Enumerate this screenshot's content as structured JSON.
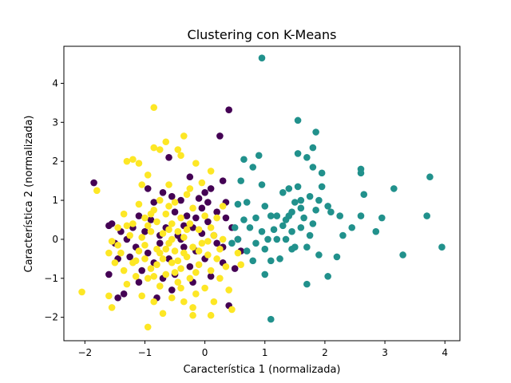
{
  "chart_data": {
    "type": "scatter",
    "title": "Clustering con K-Means",
    "xlabel": "Característica 1 (normalizada)",
    "ylabel": "Característica 2 (normalizada)",
    "xlim": [
      -2.35,
      4.25
    ],
    "ylim": [
      -2.6,
      4.95
    ],
    "xticks": [
      -2,
      -1,
      0,
      1,
      2,
      3,
      4
    ],
    "yticks": [
      -2,
      -1,
      0,
      1,
      2,
      3,
      4
    ],
    "xtick_labels": [
      "−2",
      "−1",
      "0",
      "1",
      "2",
      "3",
      "4"
    ],
    "ytick_labels": [
      "−2",
      "−1",
      "0",
      "1",
      "2",
      "3",
      "4"
    ],
    "grid": false,
    "legend": "none",
    "series": [
      {
        "color": "#440154",
        "points": [
          [
            -1.85,
            1.45
          ],
          [
            -1.6,
            0.35
          ],
          [
            -1.6,
            -0.9
          ],
          [
            -1.55,
            0.4
          ],
          [
            -1.5,
            -0.1
          ],
          [
            -1.45,
            -0.5
          ],
          [
            -1.45,
            -1.5
          ],
          [
            -1.4,
            0.2
          ],
          [
            -1.35,
            -1.4
          ],
          [
            -1.3,
            0.0
          ],
          [
            -1.25,
            -0.45
          ],
          [
            -1.2,
            0.3
          ],
          [
            -1.15,
            -0.2
          ],
          [
            -1.1,
            0.6
          ],
          [
            -1.05,
            -0.8
          ],
          [
            -1.0,
            0.2
          ],
          [
            -0.95,
            -0.35
          ],
          [
            -0.9,
            0.5
          ],
          [
            -0.85,
            -0.6
          ],
          [
            -0.8,
            -1.5
          ],
          [
            -0.75,
            -0.1
          ],
          [
            -0.7,
            1.2
          ],
          [
            -0.65,
            0.3
          ],
          [
            -0.6,
            -0.5
          ],
          [
            -0.55,
            1.1
          ],
          [
            -0.55,
            -1.3
          ],
          [
            -0.5,
            0.7
          ],
          [
            -0.5,
            -0.9
          ],
          [
            -0.45,
            0.1
          ],
          [
            -0.4,
            1.0
          ],
          [
            -0.35,
            -0.2
          ],
          [
            -0.3,
            0.6
          ],
          [
            -0.25,
            -0.7
          ],
          [
            -0.25,
            1.6
          ],
          [
            -0.2,
            0.3
          ],
          [
            -0.15,
            -0.3
          ],
          [
            -0.1,
            1.05
          ],
          [
            -0.05,
            0.8
          ],
          [
            0.0,
            -0.5
          ],
          [
            0.05,
            0.45
          ],
          [
            0.1,
            -0.95
          ],
          [
            0.1,
            1.3
          ],
          [
            0.15,
            0.1
          ],
          [
            0.2,
            0.7
          ],
          [
            0.25,
            2.65
          ],
          [
            0.3,
            -0.2
          ],
          [
            0.35,
            0.95
          ],
          [
            0.4,
            3.32
          ],
          [
            0.4,
            -1.7
          ],
          [
            0.45,
            0.3
          ],
          [
            0.5,
            -0.75
          ],
          [
            0.55,
            0.0
          ],
          [
            0.6,
            -0.3
          ],
          [
            0.3,
            1.5
          ],
          [
            -0.6,
            2.1
          ],
          [
            -0.4,
            0.0
          ],
          [
            -0.95,
            1.3
          ],
          [
            0.0,
            1.2
          ],
          [
            -0.7,
            -1.0
          ],
          [
            -0.2,
            -1.1
          ],
          [
            0.2,
            -0.1
          ],
          [
            -0.15,
            0.55
          ],
          [
            0.05,
            0.95
          ],
          [
            -0.05,
            0.15
          ],
          [
            -0.35,
            0.35
          ],
          [
            -0.85,
            0.95
          ],
          [
            -1.1,
            -1.1
          ],
          [
            -0.75,
            0.1
          ],
          [
            0.35,
            0.55
          ],
          [
            0.3,
            -0.6
          ]
        ]
      },
      {
        "color": "#21918c",
        "points": [
          [
            0.95,
            4.65
          ],
          [
            1.55,
            3.05
          ],
          [
            1.85,
            2.75
          ],
          [
            1.8,
            2.35
          ],
          [
            1.55,
            2.2
          ],
          [
            1.7,
            2.1
          ],
          [
            1.8,
            1.85
          ],
          [
            1.95,
            1.7
          ],
          [
            2.6,
            1.8
          ],
          [
            2.6,
            1.7
          ],
          [
            2.65,
            1.15
          ],
          [
            3.15,
            1.3
          ],
          [
            3.75,
            1.6
          ],
          [
            3.7,
            0.6
          ],
          [
            3.95,
            -0.2
          ],
          [
            2.95,
            0.55
          ],
          [
            2.85,
            0.2
          ],
          [
            2.6,
            0.6
          ],
          [
            2.3,
            0.1
          ],
          [
            2.45,
            0.3
          ],
          [
            2.25,
            0.6
          ],
          [
            2.1,
            0.7
          ],
          [
            2.05,
            0.85
          ],
          [
            1.95,
            1.35
          ],
          [
            1.9,
            1.0
          ],
          [
            1.85,
            0.75
          ],
          [
            1.8,
            0.4
          ],
          [
            1.75,
            0.1
          ],
          [
            1.7,
            -0.2
          ],
          [
            1.65,
            0.55
          ],
          [
            1.6,
            0.8
          ],
          [
            1.6,
            0.3
          ],
          [
            1.55,
            1.35
          ],
          [
            1.5,
            -0.2
          ],
          [
            1.5,
            0.95
          ],
          [
            1.45,
            0.2
          ],
          [
            1.45,
            -0.25
          ],
          [
            1.4,
            1.3
          ],
          [
            1.4,
            0.6
          ],
          [
            1.35,
            0.0
          ],
          [
            1.3,
            1.2
          ],
          [
            1.3,
            0.35
          ],
          [
            1.25,
            -0.5
          ],
          [
            1.2,
            0.6
          ],
          [
            1.2,
            0.0
          ],
          [
            1.15,
            0.25
          ],
          [
            1.1,
            0.6
          ],
          [
            1.1,
            -0.55
          ],
          [
            1.05,
            0.0
          ],
          [
            1.0,
            0.85
          ],
          [
            1.0,
            -0.25
          ],
          [
            0.95,
            1.4
          ],
          [
            0.95,
            0.2
          ],
          [
            0.9,
            2.15
          ],
          [
            0.85,
            0.55
          ],
          [
            0.85,
            -0.1
          ],
          [
            0.8,
            1.85
          ],
          [
            0.8,
            -0.55
          ],
          [
            0.75,
            0.3
          ],
          [
            0.7,
            0.95
          ],
          [
            0.7,
            -0.3
          ],
          [
            0.65,
            0.5
          ],
          [
            0.6,
            1.5
          ],
          [
            0.55,
            0.0
          ],
          [
            0.55,
            0.9
          ],
          [
            0.5,
            0.3
          ],
          [
            0.45,
            -0.1
          ],
          [
            0.65,
            2.05
          ],
          [
            1.1,
            -2.05
          ],
          [
            1.7,
            -1.15
          ],
          [
            1.9,
            -0.4
          ],
          [
            2.2,
            -0.45
          ],
          [
            2.05,
            -0.95
          ],
          [
            3.3,
            -0.4
          ],
          [
            1.0,
            -0.9
          ],
          [
            1.45,
            0.7
          ],
          [
            1.6,
            1.0
          ],
          [
            1.35,
            0.5
          ],
          [
            1.75,
            1.1
          ]
        ]
      },
      {
        "color": "#fde725",
        "points": [
          [
            -0.85,
            3.38
          ],
          [
            -1.3,
            2.0
          ],
          [
            -1.2,
            2.05
          ],
          [
            -1.1,
            1.95
          ],
          [
            -0.95,
            1.65
          ],
          [
            -0.85,
            2.35
          ],
          [
            -0.75,
            2.3
          ],
          [
            -0.65,
            2.5
          ],
          [
            -0.45,
            2.3
          ],
          [
            -0.4,
            2.15
          ],
          [
            -0.35,
            2.65
          ],
          [
            -0.15,
            1.95
          ],
          [
            0.1,
            1.75
          ],
          [
            -1.8,
            1.25
          ],
          [
            -1.55,
            -0.05
          ],
          [
            -1.5,
            -0.6
          ],
          [
            -1.6,
            -1.45
          ],
          [
            -1.55,
            -1.75
          ],
          [
            -1.45,
            0.3
          ],
          [
            -1.4,
            -0.35
          ],
          [
            -1.35,
            -0.8
          ],
          [
            -1.35,
            0.65
          ],
          [
            -1.3,
            -1.15
          ],
          [
            -1.25,
            0.1
          ],
          [
            -1.2,
            -0.6
          ],
          [
            -1.2,
            0.4
          ],
          [
            -1.15,
            -0.95
          ],
          [
            -1.1,
            0.9
          ],
          [
            -1.1,
            -0.3
          ],
          [
            -1.05,
            -1.45
          ],
          [
            -1.05,
            1.4
          ],
          [
            -1.0,
            -0.5
          ],
          [
            -1.0,
            0.55
          ],
          [
            -0.95,
            -1.0
          ],
          [
            -0.95,
            -2.25
          ],
          [
            -0.9,
            0.2
          ],
          [
            -0.9,
            -0.75
          ],
          [
            -0.85,
            0.75
          ],
          [
            -0.85,
            -1.6
          ],
          [
            -0.8,
            -0.25
          ],
          [
            -0.8,
            0.45
          ],
          [
            -0.75,
            -1.2
          ],
          [
            -0.75,
            1.0
          ],
          [
            -0.7,
            -0.5
          ],
          [
            -0.7,
            0.15
          ],
          [
            -0.7,
            -1.9
          ],
          [
            -0.65,
            0.65
          ],
          [
            -0.65,
            -0.9
          ],
          [
            -0.6,
            -0.1
          ],
          [
            -0.6,
            1.4
          ],
          [
            -0.55,
            -0.6
          ],
          [
            -0.55,
            0.4
          ],
          [
            -0.55,
            -1.5
          ],
          [
            -0.5,
            0.95
          ],
          [
            -0.5,
            -0.3
          ],
          [
            -0.45,
            0.2
          ],
          [
            -0.45,
            -1.1
          ],
          [
            -0.4,
            0.55
          ],
          [
            -0.4,
            -0.75
          ],
          [
            -0.35,
            -1.6
          ],
          [
            -0.35,
            0.05
          ],
          [
            -0.3,
            1.15
          ],
          [
            -0.3,
            -0.45
          ],
          [
            -0.25,
            0.4
          ],
          [
            -0.25,
            -1.0
          ],
          [
            -0.2,
            0.8
          ],
          [
            -0.2,
            -0.2
          ],
          [
            -0.15,
            -1.4
          ],
          [
            -0.1,
            0.25
          ],
          [
            -0.1,
            -0.65
          ],
          [
            -0.05,
            1.45
          ],
          [
            -0.05,
            -0.1
          ],
          [
            0.0,
            0.6
          ],
          [
            0.0,
            -1.25
          ],
          [
            0.05,
            -0.4
          ],
          [
            0.1,
            0.3
          ],
          [
            0.1,
            -0.8
          ],
          [
            0.15,
            -1.6
          ],
          [
            0.2,
            0.55
          ],
          [
            0.2,
            -0.5
          ],
          [
            0.25,
            -1.0
          ],
          [
            0.3,
            0.0
          ],
          [
            0.3,
            0.85
          ],
          [
            0.35,
            -0.7
          ],
          [
            0.4,
            -1.3
          ],
          [
            0.45,
            -1.8
          ],
          [
            0.55,
            -0.35
          ],
          [
            0.6,
            -0.65
          ],
          [
            -1.45,
            -0.15
          ],
          [
            -1.3,
            0.35
          ],
          [
            -1.05,
            0.05
          ],
          [
            -0.9,
            0.65
          ],
          [
            -0.6,
            0.85
          ],
          [
            -0.25,
            1.3
          ],
          [
            -0.2,
            -1.75
          ],
          [
            -0.8,
            -0.65
          ],
          [
            -1.6,
            -0.35
          ],
          [
            -2.05,
            -1.35
          ],
          [
            -0.2,
            -1.95
          ],
          [
            0.1,
            -1.95
          ],
          [
            -0.5,
            -0.85
          ],
          [
            -0.6,
            0.25
          ],
          [
            -0.35,
            -0.35
          ],
          [
            -0.15,
            -0.85
          ],
          [
            -0.75,
            -0.35
          ],
          [
            -1.0,
            -0.15
          ],
          [
            0.15,
            0.1
          ],
          [
            -0.45,
            -0.55
          ],
          [
            -0.95,
            0.35
          ],
          [
            -0.55,
            0.0
          ],
          [
            -0.3,
            0.25
          ],
          [
            -0.1,
            -0.3
          ],
          [
            -0.65,
            -0.25
          ],
          [
            -1.15,
            -0.55
          ],
          [
            -0.85,
            -0.95
          ],
          [
            -0.4,
            -1.25
          ],
          [
            0.05,
            -0.05
          ],
          [
            0.25,
            -0.25
          ]
        ]
      }
    ]
  }
}
